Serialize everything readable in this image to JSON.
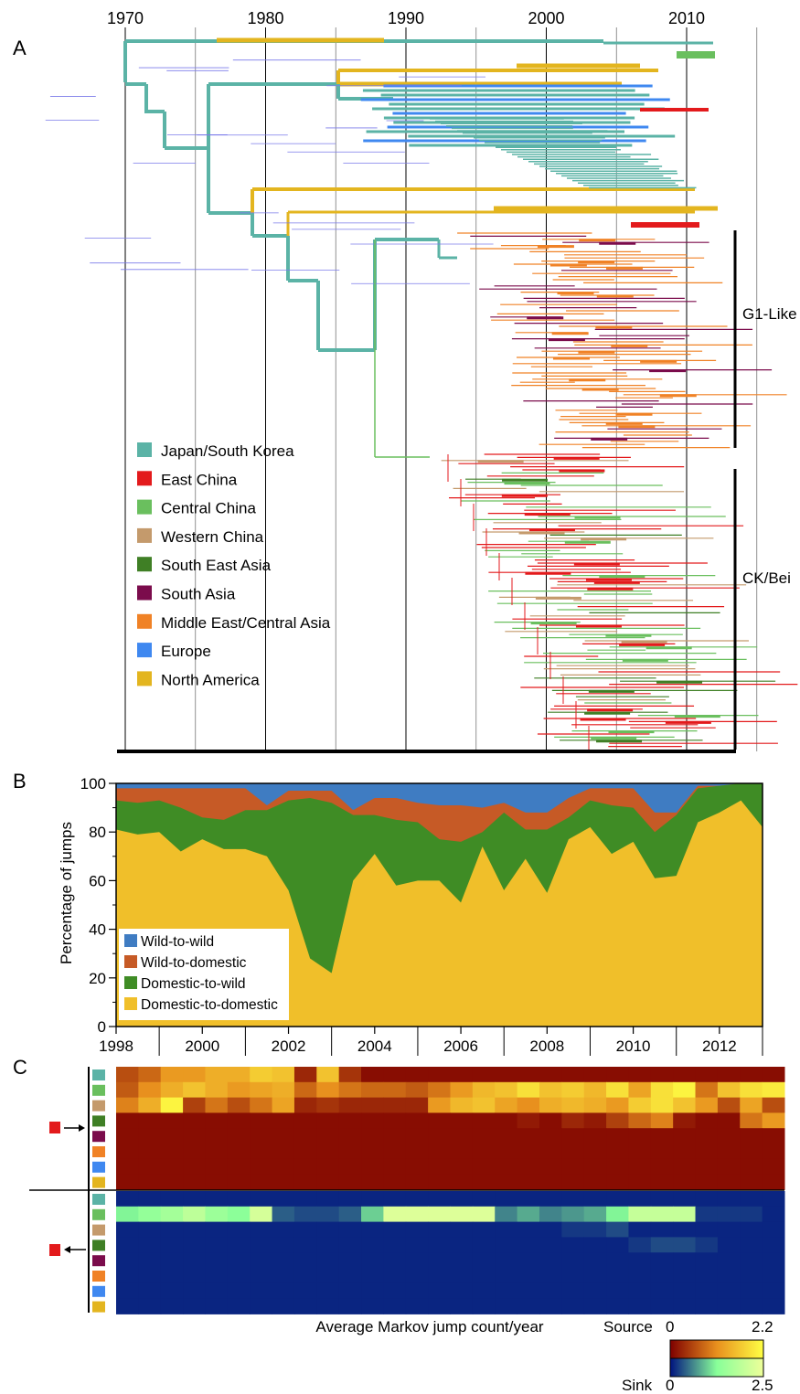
{
  "panel_labels": {
    "a": "A",
    "b": "B",
    "c": "C"
  },
  "colors": {
    "japan": "#5bb3a6",
    "east_china": "#e31a1c",
    "central_china": "#6abf5e",
    "western_china": "#c49a6c",
    "se_asia": "#3f7f25",
    "south_asia": "#7b0c4c",
    "middle_east": "#f08226",
    "europe": "#3f88f0",
    "north_america": "#e3b51f",
    "wild_to_wild": "#3f7cc2",
    "wild_to_domestic": "#c65a26",
    "domestic_to_wild": "#3f8c25",
    "domestic_to_domestic": "#f0bf2a"
  },
  "chart_data": [
    {
      "type": "tree",
      "panel": "A",
      "x_ticks": [
        "1970",
        "1980",
        "1990",
        "2000",
        "2010"
      ],
      "x_tick_values": [
        1970,
        1980,
        1990,
        2000,
        2010
      ],
      "x_range": [
        1969,
        2012
      ],
      "legend": [
        {
          "label": "Japan/South Korea",
          "color_key": "japan"
        },
        {
          "label": "East China",
          "color_key": "east_china"
        },
        {
          "label": "Central China",
          "color_key": "central_china"
        },
        {
          "label": "Western China",
          "color_key": "western_china"
        },
        {
          "label": "South East Asia",
          "color_key": "se_asia"
        },
        {
          "label": "South Asia",
          "color_key": "south_asia"
        },
        {
          "label": "Middle East/Central Asia",
          "color_key": "middle_east"
        },
        {
          "label": "Europe",
          "color_key": "europe"
        },
        {
          "label": "North America",
          "color_key": "north_america"
        }
      ],
      "clades": [
        "G1-Like",
        "CK/Bei"
      ]
    },
    {
      "type": "area",
      "panel": "B",
      "ylabel": "Percentage of jumps",
      "ylim": [
        0,
        100
      ],
      "y_ticks": [
        "0",
        "20",
        "40",
        "60",
        "80",
        "100"
      ],
      "x_ticks": [
        "1998",
        "2000",
        "2002",
        "2004",
        "2006",
        "2008",
        "2010",
        "2012"
      ],
      "x": [
        1998.0,
        1998.5,
        1999.0,
        1999.5,
        2000.0,
        2000.5,
        2001.0,
        2001.5,
        2002.0,
        2002.5,
        2003.0,
        2003.5,
        2004.0,
        2004.5,
        2005.0,
        2005.5,
        2006.0,
        2006.5,
        2007.0,
        2007.5,
        2008.0,
        2008.5,
        2009.0,
        2009.5,
        2010.0,
        2010.5,
        2011.0,
        2011.5,
        2012.0,
        2012.5,
        2013.0
      ],
      "series": [
        {
          "name": "Domestic-to-domestic",
          "color_key": "domestic_to_domestic",
          "values": [
            81,
            79,
            80,
            72,
            77,
            73,
            73,
            70,
            56,
            28,
            22,
            60,
            71,
            58,
            60,
            60,
            51,
            74,
            56,
            69,
            55,
            77,
            82,
            71,
            76,
            61,
            62,
            84,
            88,
            93,
            82
          ]
        },
        {
          "name": "Domestic-to-wild",
          "color_key": "domestic_to_wild",
          "values": [
            12,
            13,
            13,
            18,
            9,
            12,
            16,
            19,
            37,
            66,
            70,
            27,
            16,
            27,
            24,
            17,
            25,
            6,
            32,
            12,
            26,
            9,
            11,
            20,
            14,
            19,
            25,
            14,
            11,
            7,
            18
          ]
        },
        {
          "name": "Wild-to-domestic",
          "color_key": "wild_to_domestic",
          "values": [
            5,
            6,
            5,
            8,
            12,
            13,
            9,
            2,
            4,
            3,
            5,
            2,
            7,
            9,
            8,
            14,
            15,
            10,
            4,
            7,
            7,
            8,
            5,
            7,
            8,
            8,
            1,
            1,
            0,
            0,
            0
          ]
        },
        {
          "name": "Wild-to-wild",
          "color_key": "wild_to_wild",
          "values": [
            2,
            2,
            2,
            2,
            2,
            2,
            2,
            9,
            3,
            3,
            3,
            11,
            6,
            6,
            8,
            9,
            9,
            10,
            8,
            12,
            12,
            6,
            2,
            2,
            2,
            12,
            12,
            1,
            1,
            0,
            0
          ]
        }
      ]
    },
    {
      "type": "heatmap",
      "panel": "C",
      "title": "Average Markov jump count/year",
      "x_range": [
        1998,
        2013
      ],
      "columns": 30,
      "row_color_keys": [
        "japan",
        "central_china",
        "western_china",
        "se_asia",
        "south_asia",
        "middle_east",
        "europe",
        "north_america"
      ],
      "source_label": "Source",
      "sink_label": "Sink",
      "source_scale": {
        "min": "0",
        "max": "2.2"
      },
      "sink_scale": {
        "min": "0",
        "max": "2.5"
      },
      "source_rows": [
        [
          0.6,
          0.8,
          1.2,
          1.2,
          1.4,
          1.4,
          1.7,
          1.6,
          0.3,
          1.6,
          0.4,
          0.1,
          0.1,
          0.1,
          0.1,
          0.1,
          0.1,
          0.1,
          0.1,
          0.1,
          0.1,
          0.1,
          0.1,
          0.1,
          0.1,
          0.1,
          0.1,
          0.1,
          0.1,
          0.1
        ],
        [
          0.7,
          1.1,
          1.4,
          1.6,
          1.4,
          1.2,
          1.3,
          1.4,
          0.8,
          1.1,
          0.9,
          0.8,
          0.8,
          0.7,
          0.9,
          1.2,
          1.5,
          1.6,
          1.9,
          1.6,
          1.7,
          1.5,
          1.9,
          1.3,
          1.9,
          2.1,
          0.9,
          1.6,
          1.9,
          2.0
        ],
        [
          1.0,
          1.4,
          2.1,
          0.5,
          0.9,
          0.6,
          0.9,
          1.3,
          0.3,
          0.4,
          0.3,
          0.3,
          0.3,
          0.3,
          1.2,
          1.5,
          1.6,
          1.3,
          1.1,
          1.4,
          1.5,
          1.4,
          1.2,
          1.7,
          1.9,
          1.6,
          1.2,
          0.6,
          1.3,
          0.6
        ],
        [
          0.1,
          0.1,
          0.1,
          0.1,
          0.1,
          0.1,
          0.1,
          0.1,
          0.1,
          0.1,
          0.1,
          0.1,
          0.1,
          0.1,
          0.1,
          0.1,
          0.1,
          0.1,
          0.2,
          0.1,
          0.3,
          0.2,
          0.5,
          0.8,
          1.0,
          0.2,
          0.1,
          0.1,
          0.9,
          1.2
        ],
        [
          0.1,
          0.1,
          0.1,
          0.1,
          0.1,
          0.1,
          0.1,
          0.1,
          0.1,
          0.1,
          0.1,
          0.1,
          0.1,
          0.1,
          0.1,
          0.1,
          0.1,
          0.1,
          0.1,
          0.1,
          0.1,
          0.1,
          0.1,
          0.1,
          0.1,
          0.1,
          0.1,
          0.1,
          0.1,
          0.1
        ],
        [
          0.1,
          0.1,
          0.1,
          0.1,
          0.1,
          0.1,
          0.1,
          0.1,
          0.1,
          0.1,
          0.1,
          0.1,
          0.1,
          0.1,
          0.1,
          0.1,
          0.1,
          0.1,
          0.1,
          0.1,
          0.1,
          0.1,
          0.1,
          0.1,
          0.1,
          0.1,
          0.1,
          0.1,
          0.1,
          0.1
        ],
        [
          0.1,
          0.1,
          0.1,
          0.1,
          0.1,
          0.1,
          0.1,
          0.1,
          0.1,
          0.1,
          0.1,
          0.1,
          0.1,
          0.1,
          0.1,
          0.1,
          0.1,
          0.1,
          0.1,
          0.1,
          0.1,
          0.1,
          0.1,
          0.1,
          0.1,
          0.1,
          0.1,
          0.1,
          0.1,
          0.1
        ],
        [
          0.1,
          0.1,
          0.1,
          0.1,
          0.1,
          0.1,
          0.1,
          0.1,
          0.1,
          0.1,
          0.1,
          0.1,
          0.1,
          0.1,
          0.1,
          0.1,
          0.1,
          0.1,
          0.1,
          0.1,
          0.1,
          0.1,
          0.1,
          0.1,
          0.1,
          0.1,
          0.1,
          0.1,
          0.1,
          0.1
        ]
      ],
      "sink_rows": [
        [
          0.1,
          0.1,
          0.1,
          0.1,
          0.1,
          0.1,
          0.1,
          0.1,
          0.1,
          0.1,
          0.1,
          0.1,
          0.1,
          0.1,
          0.1,
          0.1,
          0.1,
          0.1,
          0.1,
          0.1,
          0.1,
          0.1,
          0.1,
          0.1,
          0.1,
          0.1,
          0.1,
          0.1,
          0.1,
          0.1
        ],
        [
          1.2,
          1.4,
          1.6,
          1.9,
          1.5,
          1.3,
          2.2,
          0.4,
          0.3,
          0.3,
          0.4,
          1.0,
          2.3,
          2.3,
          2.3,
          2.3,
          2.3,
          0.6,
          0.8,
          0.6,
          0.7,
          0.8,
          1.2,
          2.0,
          2.0,
          2.0,
          0.2,
          0.2,
          0.2,
          0.1
        ],
        [
          0.1,
          0.1,
          0.1,
          0.1,
          0.1,
          0.1,
          0.1,
          0.1,
          0.1,
          0.1,
          0.1,
          0.1,
          0.1,
          0.1,
          0.1,
          0.1,
          0.1,
          0.1,
          0.1,
          0.1,
          0.2,
          0.2,
          0.3,
          0.1,
          0.1,
          0.1,
          0.1,
          0.1,
          0.1,
          0.1
        ],
        [
          0.1,
          0.1,
          0.1,
          0.1,
          0.1,
          0.1,
          0.1,
          0.1,
          0.1,
          0.1,
          0.1,
          0.1,
          0.1,
          0.1,
          0.1,
          0.1,
          0.1,
          0.1,
          0.1,
          0.1,
          0.1,
          0.1,
          0.1,
          0.2,
          0.3,
          0.3,
          0.2,
          0.1,
          0.1,
          0.1
        ],
        [
          0.1,
          0.1,
          0.1,
          0.1,
          0.1,
          0.1,
          0.1,
          0.1,
          0.1,
          0.1,
          0.1,
          0.1,
          0.1,
          0.1,
          0.1,
          0.1,
          0.1,
          0.1,
          0.1,
          0.1,
          0.1,
          0.1,
          0.1,
          0.1,
          0.1,
          0.1,
          0.1,
          0.1,
          0.1,
          0.1
        ],
        [
          0.1,
          0.1,
          0.1,
          0.1,
          0.1,
          0.1,
          0.1,
          0.1,
          0.1,
          0.1,
          0.1,
          0.1,
          0.1,
          0.1,
          0.1,
          0.1,
          0.1,
          0.1,
          0.1,
          0.1,
          0.1,
          0.1,
          0.1,
          0.1,
          0.1,
          0.1,
          0.1,
          0.1,
          0.1,
          0.1
        ],
        [
          0.1,
          0.1,
          0.1,
          0.1,
          0.1,
          0.1,
          0.1,
          0.1,
          0.1,
          0.1,
          0.1,
          0.1,
          0.1,
          0.1,
          0.1,
          0.1,
          0.1,
          0.1,
          0.1,
          0.1,
          0.1,
          0.1,
          0.1,
          0.1,
          0.1,
          0.1,
          0.1,
          0.1,
          0.1,
          0.1
        ],
        [
          0.1,
          0.1,
          0.1,
          0.1,
          0.1,
          0.1,
          0.1,
          0.1,
          0.1,
          0.1,
          0.1,
          0.1,
          0.1,
          0.1,
          0.1,
          0.1,
          0.1,
          0.1,
          0.1,
          0.1,
          0.1,
          0.1,
          0.1,
          0.1,
          0.1,
          0.1,
          0.1,
          0.1,
          0.1,
          0.1
        ]
      ]
    }
  ]
}
